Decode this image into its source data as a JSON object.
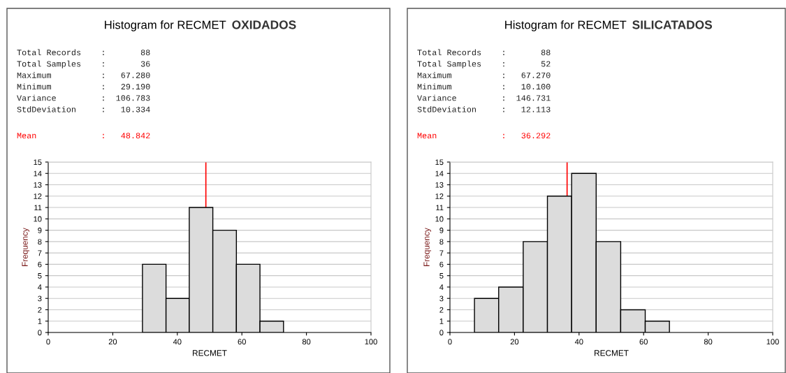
{
  "chart_data": [
    {
      "type": "histogram",
      "title": "Histogram for RECMET",
      "subtitle": "OXIDADOS",
      "xlabel": "RECMET",
      "ylabel": "Frequency",
      "annotations": [
        "Total Records    :       88",
        "Total Samples    :       36",
        "Maximum          :   67.280",
        "Minimum          :   29.190",
        "Variance         :  106.783",
        "StdDeviation     :   10.334"
      ],
      "bins": [
        29.2,
        36.5,
        43.7,
        51.0,
        58.3,
        65.6,
        72.9
      ],
      "values": [
        6,
        3,
        11,
        9,
        6,
        1
      ],
      "color": "#dcdcdc",
      "xlim": [
        0,
        100
      ],
      "xticks": [
        0,
        20,
        40,
        60,
        80,
        100
      ],
      "ylim": [
        0,
        15
      ],
      "yticks": [
        0,
        1,
        2,
        3,
        4,
        5,
        6,
        7,
        8,
        9,
        10,
        11,
        12,
        13,
        14,
        15
      ],
      "grid": "y",
      "ref_lines": [
        {
          "axis": "x",
          "value": 48.842,
          "label": "Mean             :   48.842",
          "color": "#ff0000"
        }
      ]
    },
    {
      "type": "histogram",
      "title": "Histogram for RECMET",
      "subtitle": "SILICATADOS",
      "xlabel": "RECMET",
      "ylabel": "Frequency",
      "annotations": [
        "Total Records    :       88",
        "Total Samples    :       52",
        "Maximum          :   67.270",
        "Minimum          :   10.100",
        "Variance         :  146.731",
        "StdDeviation     :   12.113"
      ],
      "bins": [
        7.6,
        15.1,
        22.7,
        30.2,
        37.7,
        45.3,
        52.9,
        60.5,
        68.0
      ],
      "values": [
        3,
        4,
        8,
        12,
        14,
        8,
        2,
        1
      ],
      "color": "#dcdcdc",
      "xlim": [
        0,
        100
      ],
      "xticks": [
        0,
        20,
        40,
        60,
        80,
        100
      ],
      "ylim": [
        0,
        15
      ],
      "yticks": [
        0,
        1,
        2,
        3,
        4,
        5,
        6,
        7,
        8,
        9,
        10,
        11,
        12,
        13,
        14,
        15
      ],
      "grid": "y",
      "ref_lines": [
        {
          "axis": "x",
          "value": 36.292,
          "label": "Mean             :   36.292",
          "color": "#ff0000"
        }
      ]
    }
  ]
}
